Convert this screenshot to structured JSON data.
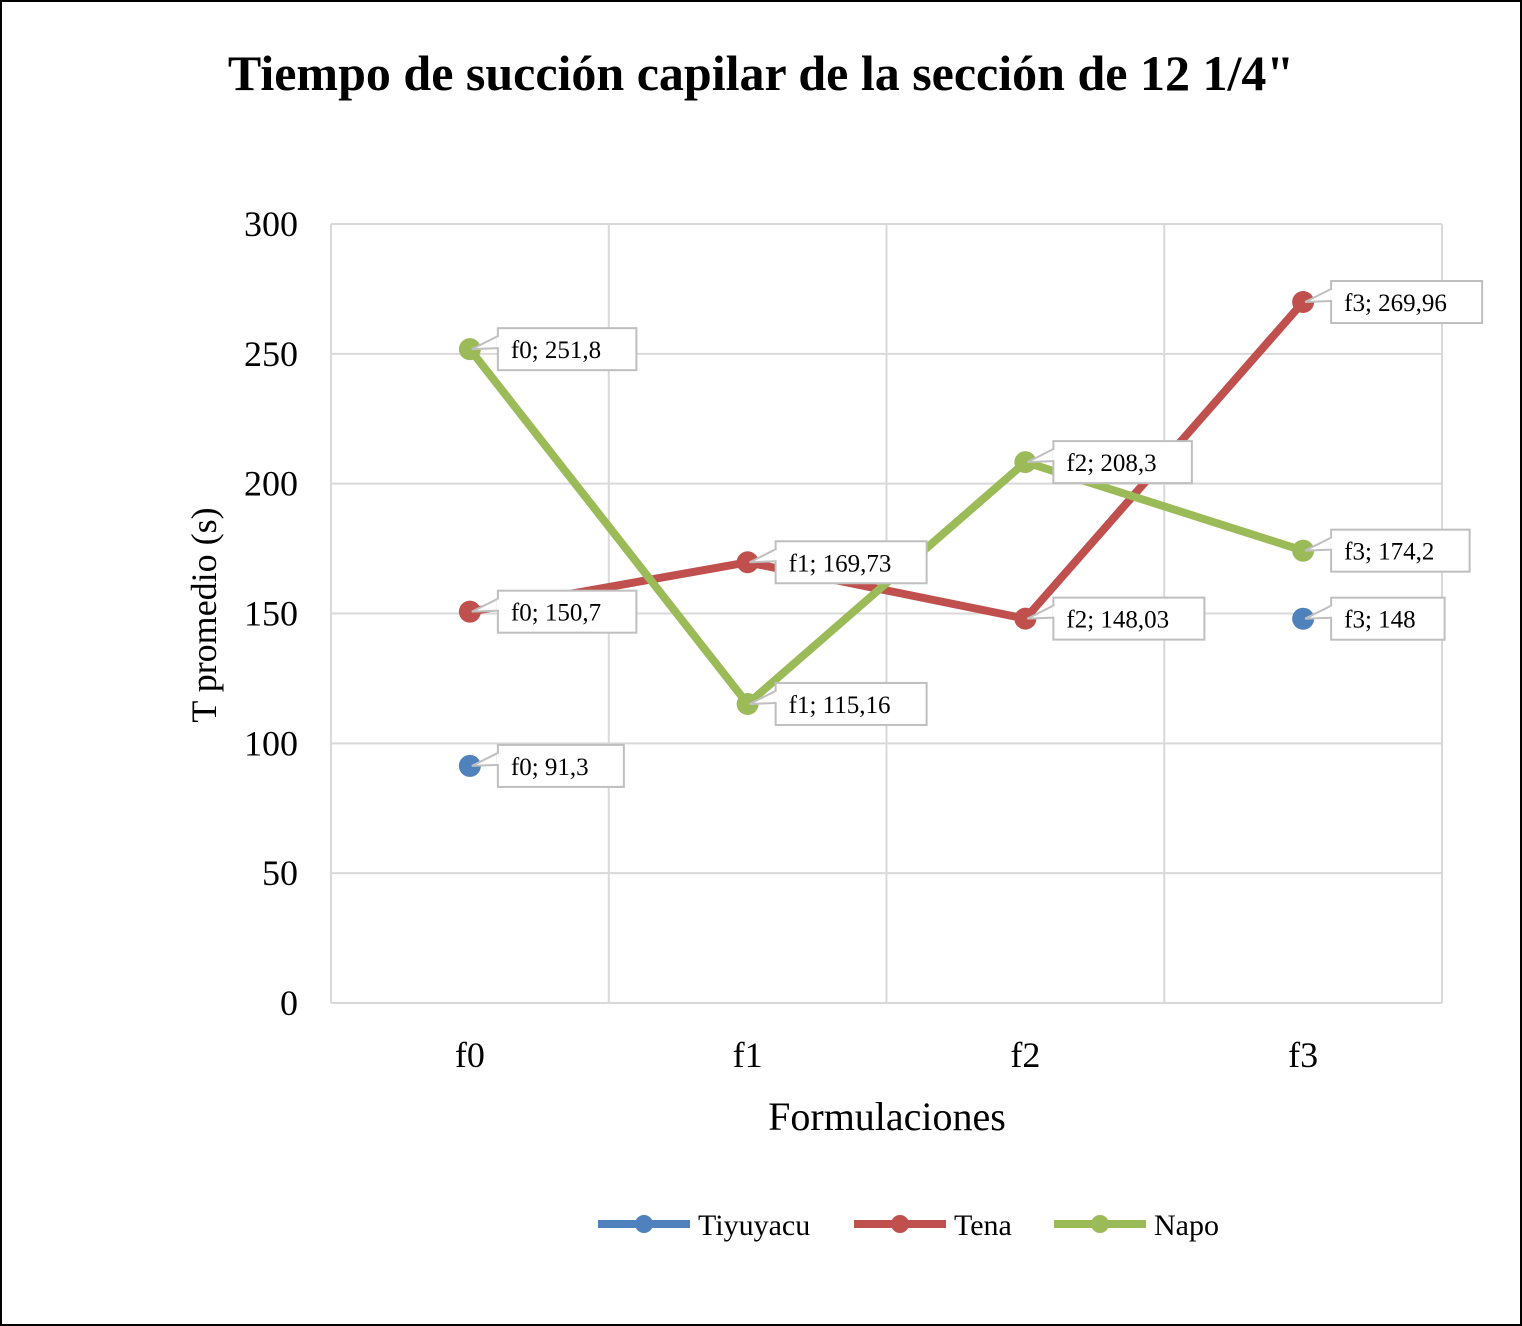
{
  "chart_data": {
    "type": "line",
    "title": "Tiempo de succión capilar de la sección de 12 1/4\"",
    "xlabel": "Formulaciones",
    "ylabel": "T promedio (s)",
    "categories": [
      "f0",
      "f1",
      "f2",
      "f3"
    ],
    "ylim": [
      0,
      300
    ],
    "yticks": [
      0,
      50,
      100,
      150,
      200,
      250,
      300
    ],
    "grid": true,
    "legend_position": "bottom",
    "series": [
      {
        "name": "Tiyuyacu",
        "color": "#4F81BD",
        "values": [
          91.3,
          null,
          null,
          148
        ],
        "data_labels": [
          "f0; 91,3",
          null,
          null,
          "f3; 148"
        ]
      },
      {
        "name": "Tena",
        "color": "#C0504D",
        "values": [
          150.7,
          169.73,
          148.03,
          269.96
        ],
        "data_labels": [
          "f0; 150,7",
          "f1; 169,73",
          "f2; 148,03",
          "f3; 269,96"
        ]
      },
      {
        "name": "Napo",
        "color": "#9BBB59",
        "values": [
          251.8,
          115.16,
          208.3,
          174.2
        ],
        "data_labels": [
          "f0; 251,8",
          "f1; 115,16",
          "f2; 208,3",
          "f3; 174,2"
        ]
      }
    ]
  }
}
